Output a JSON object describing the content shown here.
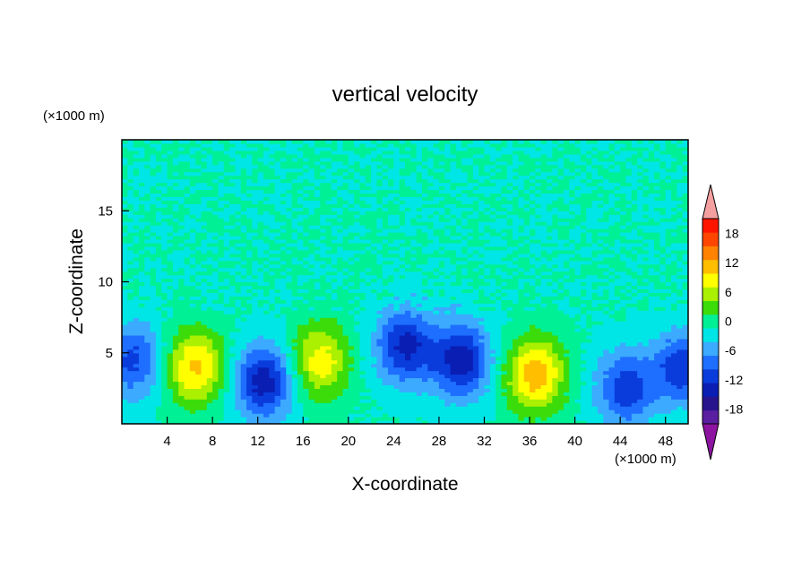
{
  "chart_data": {
    "type": "heatmap",
    "title": "vertical velocity",
    "xlabel": "X-coordinate",
    "ylabel": "Z-coordinate",
    "x_unit": "(×1000 m)",
    "y_unit": "(×1000 m)",
    "xlim": [
      0,
      50
    ],
    "ylim": [
      0,
      20
    ],
    "x_ticks": [
      4,
      8,
      12,
      16,
      20,
      24,
      28,
      32,
      36,
      40,
      44,
      48
    ],
    "x_tick_labels": [
      "4",
      "8",
      "12",
      "16",
      "20",
      "24",
      "28",
      "32",
      "36",
      "40",
      "44",
      "48"
    ],
    "y_ticks": [
      5,
      10,
      15
    ],
    "y_tick_labels": [
      "5",
      "10",
      "15"
    ],
    "colorbar": {
      "levels": [
        -21,
        -18,
        -15,
        -12,
        -9,
        -6,
        -3,
        0,
        3,
        6,
        9,
        12,
        15,
        18,
        21
      ],
      "tick_values": [
        -18,
        -12,
        -6,
        0,
        6,
        12,
        18
      ],
      "tick_labels": [
        "-18",
        "-12",
        "-6",
        "0",
        "6",
        "12",
        "18"
      ],
      "colors": [
        "#5a1ea0",
        "#28148c",
        "#0a1eb4",
        "#0a3cdc",
        "#1e6eff",
        "#3caaff",
        "#00e6e6",
        "#00f096",
        "#3cdc0a",
        "#aaf000",
        "#ffff00",
        "#ffbe00",
        "#ff8200",
        "#ff4600",
        "#ff1400"
      ],
      "under_color": "#8c14a0",
      "over_color": "#f5a0a0"
    },
    "cells": [
      {
        "x": 1,
        "z": 4.5,
        "w": -10
      },
      {
        "x": 6.5,
        "z": 4,
        "w": 13
      },
      {
        "x": 12.5,
        "z": 3,
        "w": -14
      },
      {
        "x": 17.5,
        "z": 4.5,
        "w": 11
      },
      {
        "x": 25,
        "z": 5.5,
        "w": -13
      },
      {
        "x": 30,
        "z": 4.5,
        "w": -14
      },
      {
        "x": 36.5,
        "z": 3.5,
        "w": 14
      },
      {
        "x": 44.5,
        "z": 2.5,
        "w": -11
      },
      {
        "x": 49.5,
        "z": 4,
        "w": -11
      }
    ]
  }
}
